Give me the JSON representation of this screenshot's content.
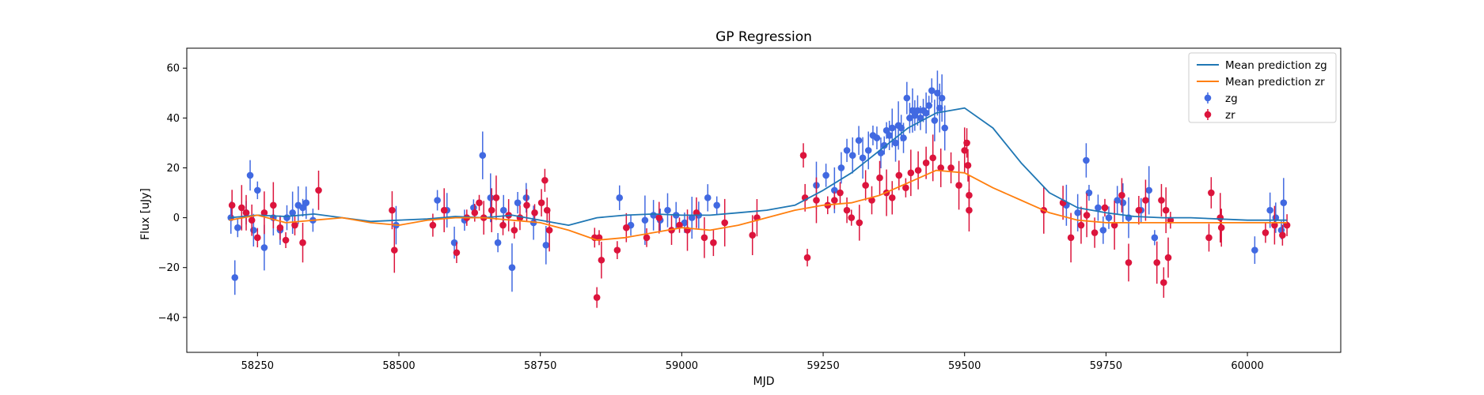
{
  "chart_data": {
    "type": "scatter",
    "title": "GP Regression",
    "xlabel": "MJD",
    "ylabel": "Flux [uJy]",
    "xlim": [
      58125,
      60165
    ],
    "ylim": [
      -54,
      68
    ],
    "xticks": [
      58250,
      58500,
      58750,
      59000,
      59250,
      59500,
      59750,
      60000
    ],
    "yticks": [
      -40,
      -20,
      0,
      20,
      40,
      60
    ],
    "legend_position": "top-right",
    "colors": {
      "zg_line": "#1f77b4",
      "zr_line": "#ff7f0e",
      "zg_points": "#4169e1",
      "zr_points": "#dc143c"
    },
    "lines": [
      {
        "name": "Mean prediction zg",
        "color": "#1f77b4",
        "x": [
          58200,
          58250,
          58300,
          58350,
          58400,
          58450,
          58500,
          58550,
          58600,
          58650,
          58700,
          58750,
          58800,
          58850,
          58900,
          58950,
          59000,
          59050,
          59100,
          59150,
          59200,
          59250,
          59300,
          59350,
          59400,
          59450,
          59500,
          59550,
          59600,
          59650,
          59700,
          59750,
          59800,
          59850,
          59900,
          59950,
          60000,
          60050,
          60070
        ],
        "y": [
          0,
          1,
          0.5,
          1.5,
          0,
          -1.5,
          -1,
          -0.5,
          0.5,
          0,
          1,
          -1,
          -3,
          0,
          1,
          1.5,
          1,
          1,
          2,
          3,
          5,
          11,
          18,
          27,
          36,
          42,
          44,
          36,
          22,
          10,
          4,
          2,
          0.5,
          0,
          0,
          -0.5,
          -1,
          -1,
          -1
        ]
      },
      {
        "name": "Mean prediction zr",
        "color": "#ff7f0e",
        "x": [
          58200,
          58250,
          58300,
          58350,
          58400,
          58450,
          58500,
          58550,
          58600,
          58650,
          58700,
          58750,
          58800,
          58850,
          58900,
          58950,
          59000,
          59050,
          59100,
          59150,
          59200,
          59250,
          59300,
          59350,
          59400,
          59450,
          59500,
          59550,
          59600,
          59650,
          59700,
          59750,
          59800,
          59850,
          59900,
          59950,
          60000,
          60050,
          60070
        ],
        "y": [
          -1,
          1,
          -2,
          -1,
          0,
          -2,
          -3,
          -1,
          0,
          0,
          -1,
          -2,
          -5,
          -9,
          -8,
          -6,
          -4,
          -5,
          -3,
          0,
          3,
          5,
          6,
          9,
          14,
          19,
          18,
          12,
          7,
          2,
          -1,
          -2,
          -2,
          -2,
          -2,
          -2,
          -2,
          -2,
          -2
        ]
      }
    ],
    "series": [
      {
        "name": "zg",
        "color": "#4169e1",
        "x": [
          58203,
          58210,
          58215,
          58230,
          58237,
          58243,
          58250,
          58262,
          58278,
          58290,
          58302,
          58312,
          58322,
          58330,
          58336,
          58348,
          58495,
          58568,
          58585,
          58598,
          58616,
          58632,
          58648,
          58662,
          58675,
          58685,
          58700,
          58710,
          58725,
          58738,
          58760,
          58890,
          58910,
          58935,
          58950,
          58962,
          58975,
          58990,
          59005,
          59018,
          59030,
          59046,
          59062,
          59238,
          59255,
          59270,
          59282,
          59292,
          59302,
          59313,
          59320,
          59330,
          59338,
          59345,
          59352,
          59358,
          59362,
          59367,
          59372,
          59378,
          59383,
          59388,
          59392,
          59398,
          59403,
          59408,
          59412,
          59417,
          59422,
          59427,
          59432,
          59437,
          59442,
          59447,
          59452,
          59456,
          59460,
          59465,
          59680,
          59700,
          59715,
          59720,
          59736,
          59745,
          59755,
          59770,
          59780,
          59790,
          59812,
          59826,
          59836,
          60013,
          60040,
          60050,
          60060,
          60064
        ],
        "y": [
          0,
          -24,
          -4,
          2,
          17,
          -5,
          11,
          -12,
          0,
          -5,
          0,
          2,
          5,
          4,
          6,
          -1,
          -3,
          7,
          3,
          -10,
          -1,
          4,
          25,
          8,
          -10,
          3,
          -20,
          6,
          8,
          -2,
          -11,
          8,
          -3,
          -1,
          1,
          -1,
          3,
          1,
          -2,
          0,
          1,
          8,
          5,
          13,
          17,
          11,
          20,
          27,
          25,
          31,
          24,
          27,
          33,
          32,
          26,
          29,
          35,
          33,
          36,
          30,
          37,
          36,
          32,
          48,
          40,
          43,
          41,
          43,
          40,
          43,
          42,
          45,
          51,
          39,
          50,
          44,
          48,
          36,
          5,
          2,
          23,
          10,
          4,
          -5,
          0,
          7,
          6,
          0,
          3,
          11,
          -8,
          -13,
          3,
          0,
          -5,
          6
        ]
      },
      {
        "name": "zr",
        "color": "#dc143c",
        "x": [
          58205,
          58222,
          58230,
          58240,
          58250,
          58262,
          58278,
          58290,
          58300,
          58316,
          58330,
          58358,
          58488,
          58492,
          58560,
          58580,
          58602,
          58620,
          58634,
          58642,
          58650,
          58664,
          58672,
          58684,
          58694,
          58704,
          58714,
          58726,
          58740,
          58752,
          58758,
          58762,
          58766,
          58846,
          58850,
          58854,
          58858,
          58886,
          58902,
          58938,
          58960,
          58982,
          58996,
          59010,
          59026,
          59040,
          59056,
          59076,
          59125,
          59133,
          59215,
          59218,
          59222,
          59238,
          59258,
          59270,
          59280,
          59292,
          59300,
          59314,
          59325,
          59336,
          59350,
          59362,
          59372,
          59384,
          59396,
          59405,
          59418,
          59432,
          59444,
          59458,
          59476,
          59490,
          59500,
          59504,
          59506,
          59508,
          59508,
          59640,
          59674,
          59688,
          59706,
          59716,
          59730,
          59748,
          59765,
          59778,
          59790,
          59808,
          59820,
          59840,
          59848,
          59852,
          59856,
          59860,
          59864,
          59932,
          59936,
          59952,
          59954,
          60032,
          60048,
          60062,
          60070
        ],
        "y": [
          5,
          4,
          2,
          -1,
          -8,
          2,
          5,
          -4,
          -9,
          -3,
          -10,
          11,
          3,
          -13,
          -3,
          3,
          -14,
          0,
          2,
          6,
          0,
          3,
          8,
          -3,
          1,
          -5,
          0,
          5,
          2,
          6,
          15,
          3,
          -5,
          -8,
          -32,
          -8,
          -17,
          -13,
          -4,
          -8,
          0,
          -5,
          -3,
          -5,
          2,
          -8,
          -10,
          -2,
          -7,
          0,
          25,
          8,
          -16,
          7,
          5,
          7,
          10,
          3,
          0,
          -2,
          13,
          7,
          16,
          10,
          8,
          17,
          12,
          18,
          19,
          22,
          24,
          20,
          20,
          13,
          27,
          30,
          21,
          9,
          3,
          3,
          6,
          -8,
          -3,
          1,
          -6,
          4,
          -3,
          9,
          -18,
          3,
          7,
          -18,
          7,
          -26,
          3,
          -16,
          -1,
          -8,
          10,
          0,
          -4,
          -6,
          -3,
          -7,
          -3
        ]
      }
    ]
  }
}
